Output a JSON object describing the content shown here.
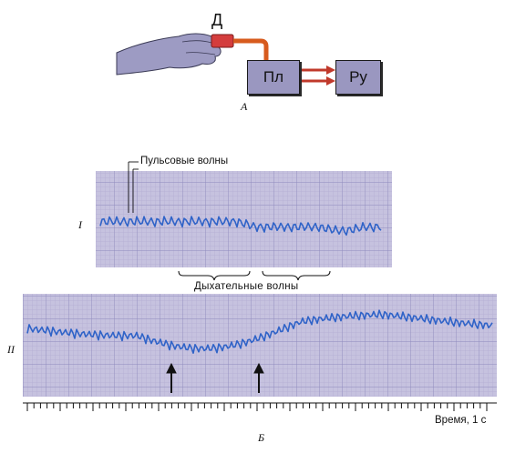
{
  "panel_a": {
    "sensor_label": "Д",
    "box1_label": "Пл",
    "box2_label": "Ру",
    "caption": "А"
  },
  "panel_b": {
    "pulse_waves_label": "Пульсовые волны",
    "breath_waves_label": "Дыхательные волны",
    "trace1_label": "I",
    "trace2_label": "II",
    "time_label": "Время, 1 с",
    "caption": "Б"
  },
  "colors": {
    "grid_bg": "#c6c2df",
    "grid_line": "#a7a2cc",
    "trace": "#2f63c8",
    "hand": "#9d9bc3",
    "tube": "#d75b1e",
    "arrow": "#c0392b"
  }
}
